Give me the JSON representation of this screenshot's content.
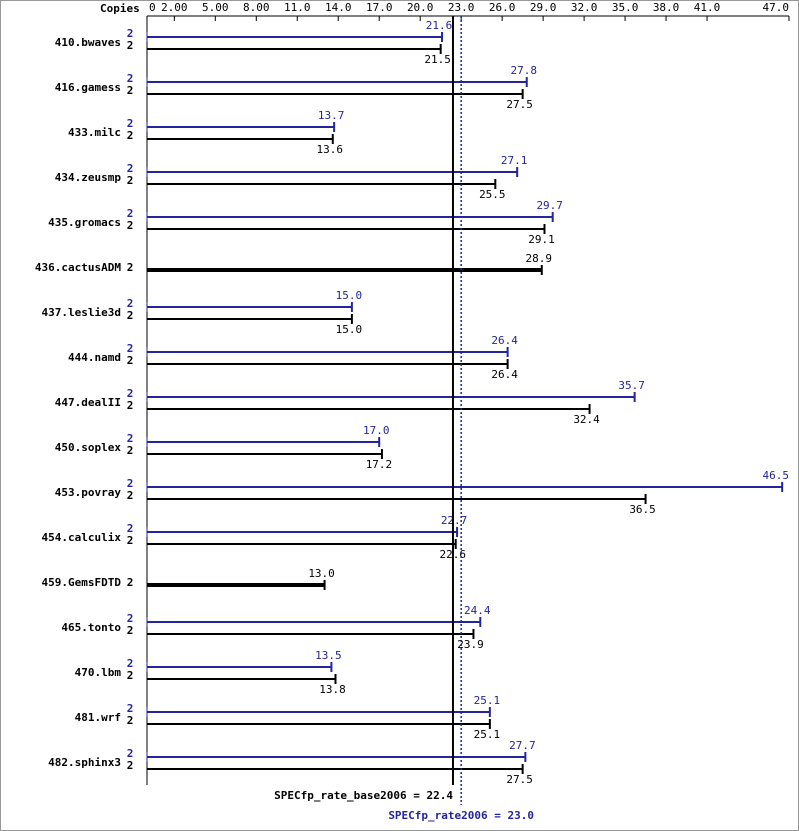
{
  "chart_data": {
    "type": "spec-bar",
    "copies_header": "Copies",
    "categories": [
      "410.bwaves",
      "416.gamess",
      "433.milc",
      "434.zeusmp",
      "435.gromacs",
      "436.cactusADM",
      "437.leslie3d",
      "444.namd",
      "447.dealII",
      "450.soplex",
      "453.povray",
      "454.calculix",
      "459.GemsFDTD",
      "465.tonto",
      "470.lbm",
      "481.wrf",
      "482.sphinx3"
    ],
    "series": [
      {
        "color": "#24249c",
        "copies": [
          2,
          2,
          2,
          2,
          2,
          null,
          2,
          2,
          2,
          2,
          2,
          2,
          null,
          2,
          2,
          2,
          2
        ],
        "values": [
          21.6,
          27.8,
          13.7,
          27.1,
          29.7,
          null,
          15.0,
          26.4,
          35.7,
          17.0,
          46.5,
          22.7,
          null,
          24.4,
          13.5,
          25.1,
          27.7
        ],
        "value_labels": [
          "21.6",
          "27.8",
          "13.7",
          "27.1",
          "29.7",
          null,
          "15.0",
          "26.4",
          "35.7",
          "17.0",
          "46.5",
          "22.7",
          null,
          "24.4",
          "13.5",
          "25.1",
          "27.7"
        ]
      },
      {
        "color": "#000000",
        "copies": [
          2,
          2,
          2,
          2,
          2,
          2,
          2,
          2,
          2,
          2,
          2,
          2,
          2,
          2,
          2,
          2,
          2
        ],
        "values": [
          21.5,
          27.5,
          13.6,
          25.5,
          29.1,
          28.9,
          15.0,
          26.4,
          32.4,
          17.2,
          36.5,
          22.6,
          13.0,
          23.9,
          13.8,
          25.1,
          27.5
        ],
        "value_labels": [
          "21.5",
          "27.5",
          "13.6",
          "25.5",
          "29.1",
          "28.9",
          "15.0",
          "26.4",
          "32.4",
          "17.2",
          "36.5",
          "22.6",
          "13.0",
          "23.9",
          "13.8",
          "25.1",
          "27.5"
        ]
      }
    ],
    "xlim": [
      0,
      47
    ],
    "xticks": [
      0,
      {
        "value": 2,
        "label": "2.00"
      },
      {
        "value": 5,
        "label": "5.00"
      },
      {
        "value": 8,
        "label": "8.00"
      },
      {
        "value": 11,
        "label": "11.0"
      },
      {
        "value": 14,
        "label": "14.0"
      },
      {
        "value": 17,
        "label": "17.0"
      },
      {
        "value": 20,
        "label": "20.0"
      },
      {
        "value": 23,
        "label": "23.0"
      },
      {
        "value": 26,
        "label": "26.0"
      },
      {
        "value": 29,
        "label": "29.0"
      },
      {
        "value": 32,
        "label": "32.0"
      },
      {
        "value": 35,
        "label": "35.0"
      },
      {
        "value": 38,
        "label": "38.0"
      },
      {
        "value": 41,
        "label": "41.0"
      },
      {
        "value": 47,
        "label": "47.0"
      }
    ],
    "summary": [
      {
        "label": "SPECfp_rate_base2006 = 22.4",
        "value": 22.4,
        "color": "#000000"
      },
      {
        "label": "SPECfp_rate2006 = 23.0",
        "value": 23.0,
        "color": "#24249c"
      }
    ]
  }
}
